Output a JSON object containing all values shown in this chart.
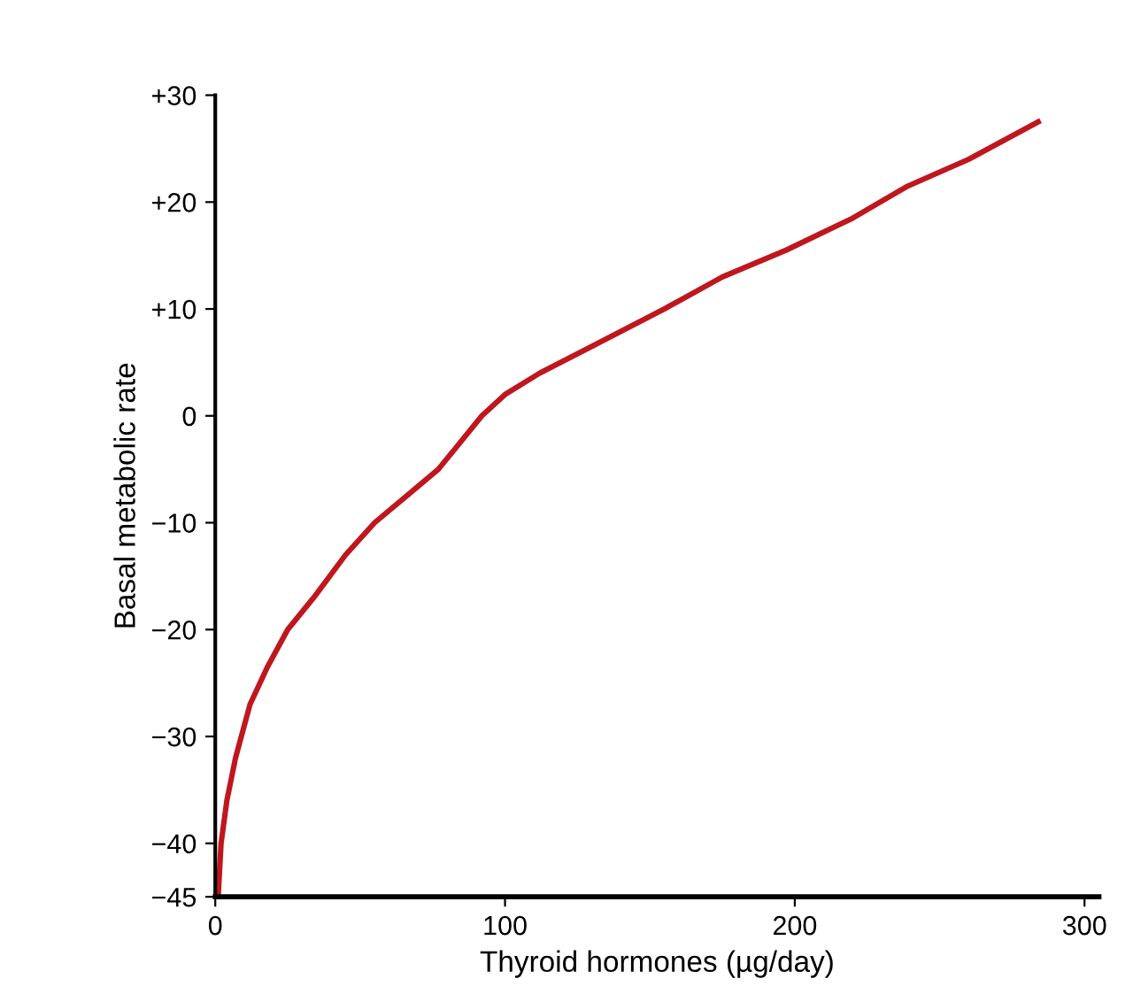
{
  "chart_data": {
    "type": "line",
    "xlabel": "Thyroid hormones (µg/day)",
    "ylabel": "Basal metabolic rate",
    "x": [
      1,
      2,
      4,
      7,
      12,
      18,
      25,
      34,
      45,
      55,
      66,
      77,
      92,
      100,
      112,
      130,
      155,
      175,
      197,
      220,
      239,
      260,
      284
    ],
    "series": [
      {
        "color": "#c0161e",
        "values": [
          -45,
          -40,
          -36,
          -32,
          -27,
          -23.5,
          -20,
          -17,
          -13,
          -10,
          -7.5,
          -5,
          0,
          2,
          4,
          6.5,
          10,
          13,
          15.5,
          18.5,
          21.5,
          24,
          27.5
        ]
      }
    ],
    "xlim": [
      0,
      305
    ],
    "xticks": [
      0,
      100,
      200,
      300
    ],
    "ylim": [
      -45,
      30
    ],
    "yticks": [
      {
        "value": 30,
        "label": "+30"
      },
      {
        "value": 20,
        "label": "+20"
      },
      {
        "value": 10,
        "label": "+10"
      },
      0,
      {
        "value": -10,
        "label": "−10"
      },
      {
        "value": -20,
        "label": "−20"
      },
      {
        "value": -30,
        "label": "−30"
      },
      {
        "value": -40,
        "label": "−40"
      },
      {
        "value": -45,
        "label": "−45"
      }
    ],
    "grid": false,
    "legend": false,
    "marker": "none",
    "line_style": "solid"
  }
}
